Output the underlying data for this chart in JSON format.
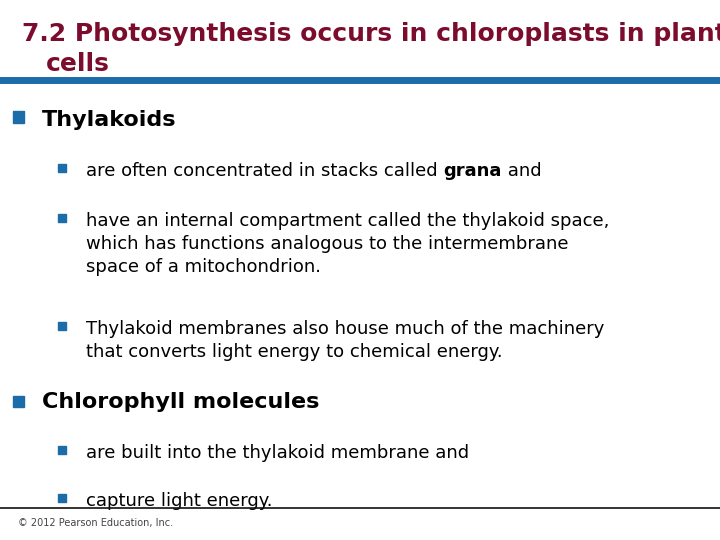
{
  "title_line1": "7.2 Photosynthesis occurs in chloroplasts in plant",
  "title_line2": "    cells",
  "title_color": "#7B0C2E",
  "title_fontsize": 18,
  "divider_color": "#1B6CA8",
  "divider_thickness": 4,
  "bottom_line_color": "#111111",
  "footer_text": "© 2012 Pearson Education, Inc.",
  "footer_fontsize": 7,
  "bg_color": "#FFFFFF",
  "bullet_color": "#1B6CA8",
  "l1_fontsize": 16,
  "l2_fontsize": 13,
  "text_color": "#000000",
  "fig_width": 7.2,
  "fig_height": 5.4,
  "dpi": 100
}
